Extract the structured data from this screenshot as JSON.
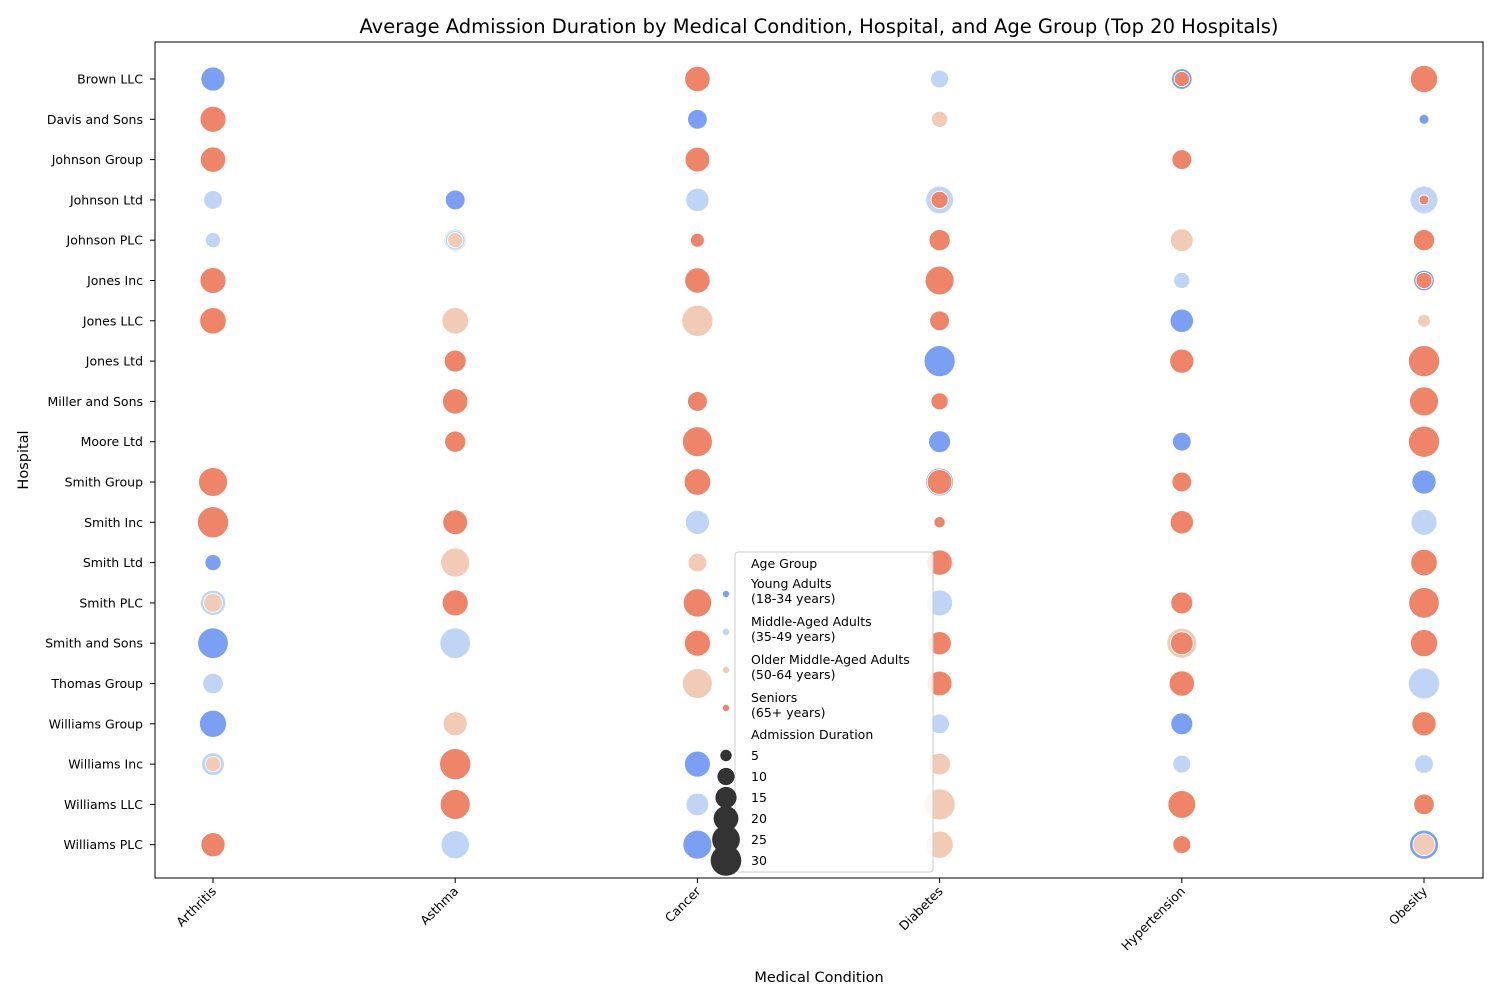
{
  "chart_data": {
    "type": "scatter",
    "title": "Average Admission Duration by Medical Condition, Hospital, and Age Group (Top 20 Hospitals)",
    "xlabel": "Medical Condition",
    "ylabel": "Hospital",
    "categories_x": [
      "Arthritis",
      "Asthma",
      "Cancer",
      "Diabetes",
      "Hypertension",
      "Obesity"
    ],
    "categories_y": [
      "Brown LLC",
      "Davis and Sons",
      "Johnson Group",
      "Johnson Ltd",
      "Johnson PLC",
      "Jones Inc",
      "Jones LLC",
      "Jones Ltd",
      "Miller and Sons",
      "Moore Ltd",
      "Smith Group",
      "Smith Inc",
      "Smith Ltd",
      "Smith PLC",
      "Smith and Sons",
      "Thomas Group",
      "Williams Group",
      "Williams Inc",
      "Williams LLC",
      "Williams PLC"
    ],
    "grid": false,
    "legend_placement": "lower-center",
    "legend": {
      "hue_title": "Age Group",
      "size_title": "Admission Duration",
      "hue_items": [
        {
          "key": "young",
          "lines": [
            "Young Adults",
            "(18-34 years)"
          ],
          "color": "#7b9ff2"
        },
        {
          "key": "middle",
          "lines": [
            "Middle-Aged Adults",
            "(35-49 years)"
          ],
          "color": "#c0d4f5"
        },
        {
          "key": "older",
          "lines": [
            "Older Middle-Aged Adults",
            "(50-64 years)"
          ],
          "color": "#f2cbb7"
        },
        {
          "key": "senior",
          "lines": [
            "Seniors",
            "(65+ years)"
          ],
          "color": "#ee8468"
        }
      ],
      "size_items": [
        5,
        10,
        15,
        20,
        25,
        30
      ]
    },
    "size_range": [
      4,
      32
    ],
    "points": [
      {
        "x": "Arthritis",
        "y": "Brown LLC",
        "group": "young",
        "value": 19
      },
      {
        "x": "Cancer",
        "y": "Brown LLC",
        "group": "senior",
        "value": 21
      },
      {
        "x": "Diabetes",
        "y": "Brown LLC",
        "group": "middle",
        "value": 11
      },
      {
        "x": "Hypertension",
        "y": "Brown LLC",
        "group": "young",
        "value": 14
      },
      {
        "x": "Hypertension",
        "y": "Brown LLC",
        "group": "senior",
        "value": 8
      },
      {
        "x": "Obesity",
        "y": "Brown LLC",
        "group": "senior",
        "value": 24
      },
      {
        "x": "Arthritis",
        "y": "Davis and Sons",
        "group": "senior",
        "value": 22
      },
      {
        "x": "Cancer",
        "y": "Davis and Sons",
        "group": "young",
        "value": 13
      },
      {
        "x": "Diabetes",
        "y": "Davis and Sons",
        "group": "older",
        "value": 9
      },
      {
        "x": "Obesity",
        "y": "Davis and Sons",
        "group": "young",
        "value": 4
      },
      {
        "x": "Arthritis",
        "y": "Johnson Group",
        "group": "senior",
        "value": 21
      },
      {
        "x": "Cancer",
        "y": "Johnson Group",
        "group": "senior",
        "value": 20
      },
      {
        "x": "Hypertension",
        "y": "Johnson Group",
        "group": "senior",
        "value": 13
      },
      {
        "x": "Arthritis",
        "y": "Johnson Ltd",
        "group": "middle",
        "value": 12
      },
      {
        "x": "Asthma",
        "y": "Johnson Ltd",
        "group": "young",
        "value": 13
      },
      {
        "x": "Cancer",
        "y": "Johnson Ltd",
        "group": "middle",
        "value": 18
      },
      {
        "x": "Diabetes",
        "y": "Johnson Ltd",
        "group": "middle",
        "value": 25
      },
      {
        "x": "Diabetes",
        "y": "Johnson Ltd",
        "group": "senior",
        "value": 10
      },
      {
        "x": "Obesity",
        "y": "Johnson Ltd",
        "group": "middle",
        "value": 25
      },
      {
        "x": "Obesity",
        "y": "Johnson Ltd",
        "group": "senior",
        "value": 4
      },
      {
        "x": "Arthritis",
        "y": "Johnson PLC",
        "group": "middle",
        "value": 8
      },
      {
        "x": "Asthma",
        "y": "Johnson PLC",
        "group": "young",
        "value": 16
      },
      {
        "x": "Asthma",
        "y": "Johnson PLC",
        "group": "middle",
        "value": 13
      },
      {
        "x": "Asthma",
        "y": "Johnson PLC",
        "group": "older",
        "value": 8
      },
      {
        "x": "Cancer",
        "y": "Johnson PLC",
        "group": "senior",
        "value": 7
      },
      {
        "x": "Diabetes",
        "y": "Johnson PLC",
        "group": "senior",
        "value": 15
      },
      {
        "x": "Hypertension",
        "y": "Johnson PLC",
        "group": "older",
        "value": 17
      },
      {
        "x": "Obesity",
        "y": "Johnson PLC",
        "group": "senior",
        "value": 15
      },
      {
        "x": "Arthritis",
        "y": "Jones Inc",
        "group": "senior",
        "value": 22
      },
      {
        "x": "Cancer",
        "y": "Jones Inc",
        "group": "senior",
        "value": 21
      },
      {
        "x": "Diabetes",
        "y": "Jones Inc",
        "group": "senior",
        "value": 27
      },
      {
        "x": "Hypertension",
        "y": "Jones Inc",
        "group": "middle",
        "value": 9
      },
      {
        "x": "Obesity",
        "y": "Jones Inc",
        "group": "young",
        "value": 14
      },
      {
        "x": "Obesity",
        "y": "Jones Inc",
        "group": "senior",
        "value": 9
      },
      {
        "x": "Arthritis",
        "y": "Jones LLC",
        "group": "senior",
        "value": 23
      },
      {
        "x": "Asthma",
        "y": "Jones LLC",
        "group": "older",
        "value": 23
      },
      {
        "x": "Cancer",
        "y": "Jones LLC",
        "group": "older",
        "value": 31
      },
      {
        "x": "Diabetes",
        "y": "Jones LLC",
        "group": "senior",
        "value": 13
      },
      {
        "x": "Hypertension",
        "y": "Jones LLC",
        "group": "young",
        "value": 18
      },
      {
        "x": "Obesity",
        "y": "Jones LLC",
        "group": "older",
        "value": 6
      },
      {
        "x": "Asthma",
        "y": "Jones Ltd",
        "group": "senior",
        "value": 16
      },
      {
        "x": "Diabetes",
        "y": "Jones Ltd",
        "group": "young",
        "value": 31
      },
      {
        "x": "Hypertension",
        "y": "Jones Ltd",
        "group": "senior",
        "value": 19
      },
      {
        "x": "Obesity",
        "y": "Jones Ltd",
        "group": "senior",
        "value": 31
      },
      {
        "x": "Asthma",
        "y": "Miller and Sons",
        "group": "senior",
        "value": 21
      },
      {
        "x": "Cancer",
        "y": "Miller and Sons",
        "group": "senior",
        "value": 13
      },
      {
        "x": "Diabetes",
        "y": "Miller and Sons",
        "group": "senior",
        "value": 10
      },
      {
        "x": "Obesity",
        "y": "Miller and Sons",
        "group": "senior",
        "value": 27
      },
      {
        "x": "Asthma",
        "y": "Moore Ltd",
        "group": "senior",
        "value": 15
      },
      {
        "x": "Cancer",
        "y": "Moore Ltd",
        "group": "senior",
        "value": 29
      },
      {
        "x": "Diabetes",
        "y": "Moore Ltd",
        "group": "young",
        "value": 16
      },
      {
        "x": "Hypertension",
        "y": "Moore Ltd",
        "group": "young",
        "value": 12
      },
      {
        "x": "Obesity",
        "y": "Moore Ltd",
        "group": "senior",
        "value": 31
      },
      {
        "x": "Arthritis",
        "y": "Smith Group",
        "group": "senior",
        "value": 27
      },
      {
        "x": "Cancer",
        "y": "Smith Group",
        "group": "senior",
        "value": 23
      },
      {
        "x": "Diabetes",
        "y": "Smith Group",
        "group": "young",
        "value": 25
      },
      {
        "x": "Diabetes",
        "y": "Smith Group",
        "group": "senior",
        "value": 20
      },
      {
        "x": "Hypertension",
        "y": "Smith Group",
        "group": "senior",
        "value": 13
      },
      {
        "x": "Obesity",
        "y": "Smith Group",
        "group": "young",
        "value": 19
      },
      {
        "x": "Arthritis",
        "y": "Smith Inc",
        "group": "senior",
        "value": 31
      },
      {
        "x": "Asthma",
        "y": "Smith Inc",
        "group": "senior",
        "value": 20
      },
      {
        "x": "Cancer",
        "y": "Smith Inc",
        "group": "middle",
        "value": 19
      },
      {
        "x": "Diabetes",
        "y": "Smith Inc",
        "group": "senior",
        "value": 5
      },
      {
        "x": "Hypertension",
        "y": "Smith Inc",
        "group": "senior",
        "value": 18
      },
      {
        "x": "Obesity",
        "y": "Smith Inc",
        "group": "middle",
        "value": 22
      },
      {
        "x": "Arthritis",
        "y": "Smith Ltd",
        "group": "young",
        "value": 9
      },
      {
        "x": "Asthma",
        "y": "Smith Ltd",
        "group": "older",
        "value": 27
      },
      {
        "x": "Cancer",
        "y": "Smith Ltd",
        "group": "older",
        "value": 12
      },
      {
        "x": "Diabetes",
        "y": "Smith Ltd",
        "group": "older",
        "value": 22
      },
      {
        "x": "Diabetes",
        "y": "Smith Ltd",
        "group": "senior",
        "value": 21
      },
      {
        "x": "Obesity",
        "y": "Smith Ltd",
        "group": "senior",
        "value": 23
      },
      {
        "x": "Arthritis",
        "y": "Smith PLC",
        "group": "middle",
        "value": 21
      },
      {
        "x": "Arthritis",
        "y": "Smith PLC",
        "group": "older",
        "value": 12
      },
      {
        "x": "Asthma",
        "y": "Smith PLC",
        "group": "senior",
        "value": 22
      },
      {
        "x": "Cancer",
        "y": "Smith PLC",
        "group": "senior",
        "value": 26
      },
      {
        "x": "Diabetes",
        "y": "Smith PLC",
        "group": "middle",
        "value": 22
      },
      {
        "x": "Hypertension",
        "y": "Smith PLC",
        "group": "senior",
        "value": 16
      },
      {
        "x": "Obesity",
        "y": "Smith PLC",
        "group": "senior",
        "value": 30
      },
      {
        "x": "Arthritis",
        "y": "Smith and Sons",
        "group": "young",
        "value": 30
      },
      {
        "x": "Asthma",
        "y": "Smith and Sons",
        "group": "middle",
        "value": 30
      },
      {
        "x": "Cancer",
        "y": "Smith and Sons",
        "group": "older",
        "value": 26
      },
      {
        "x": "Cancer",
        "y": "Smith and Sons",
        "group": "senior",
        "value": 22
      },
      {
        "x": "Diabetes",
        "y": "Smith and Sons",
        "group": "middle",
        "value": 20
      },
      {
        "x": "Diabetes",
        "y": "Smith and Sons",
        "group": "senior",
        "value": 18
      },
      {
        "x": "Hypertension",
        "y": "Smith and Sons",
        "group": "older",
        "value": 29
      },
      {
        "x": "Hypertension",
        "y": "Smith and Sons",
        "group": "senior",
        "value": 17
      },
      {
        "x": "Obesity",
        "y": "Smith and Sons",
        "group": "senior",
        "value": 24
      },
      {
        "x": "Arthritis",
        "y": "Thomas Group",
        "group": "middle",
        "value": 14
      },
      {
        "x": "Cancer",
        "y": "Thomas Group",
        "group": "older",
        "value": 29
      },
      {
        "x": "Diabetes",
        "y": "Thomas Group",
        "group": "senior",
        "value": 20
      },
      {
        "x": "Hypertension",
        "y": "Thomas Group",
        "group": "senior",
        "value": 21
      },
      {
        "x": "Obesity",
        "y": "Thomas Group",
        "group": "middle",
        "value": 31
      },
      {
        "x": "Arthritis",
        "y": "Williams Group",
        "group": "young",
        "value": 24
      },
      {
        "x": "Asthma",
        "y": "Williams Group",
        "group": "older",
        "value": 19
      },
      {
        "x": "Diabetes",
        "y": "Williams Group",
        "group": "middle",
        "value": 13
      },
      {
        "x": "Hypertension",
        "y": "Williams Group",
        "group": "young",
        "value": 16
      },
      {
        "x": "Obesity",
        "y": "Williams Group",
        "group": "senior",
        "value": 19
      },
      {
        "x": "Arthritis",
        "y": "Williams Inc",
        "group": "middle",
        "value": 17
      },
      {
        "x": "Arthritis",
        "y": "Williams Inc",
        "group": "older",
        "value": 8
      },
      {
        "x": "Asthma",
        "y": "Williams Inc",
        "group": "senior",
        "value": 31
      },
      {
        "x": "Cancer",
        "y": "Williams Inc",
        "group": "young",
        "value": 22
      },
      {
        "x": "Diabetes",
        "y": "Williams Inc",
        "group": "older",
        "value": 16
      },
      {
        "x": "Hypertension",
        "y": "Williams Inc",
        "group": "middle",
        "value": 11
      },
      {
        "x": "Obesity",
        "y": "Williams Inc",
        "group": "middle",
        "value": 12
      },
      {
        "x": "Asthma",
        "y": "Williams LLC",
        "group": "senior",
        "value": 29
      },
      {
        "x": "Cancer",
        "y": "Williams LLC",
        "group": "middle",
        "value": 17
      },
      {
        "x": "Diabetes",
        "y": "Williams LLC",
        "group": "older",
        "value": 31
      },
      {
        "x": "Hypertension",
        "y": "Williams LLC",
        "group": "senior",
        "value": 25
      },
      {
        "x": "Obesity",
        "y": "Williams LLC",
        "group": "senior",
        "value": 14
      },
      {
        "x": "Arthritis",
        "y": "Williams PLC",
        "group": "senior",
        "value": 19
      },
      {
        "x": "Asthma",
        "y": "Williams PLC",
        "group": "middle",
        "value": 26
      },
      {
        "x": "Cancer",
        "y": "Williams PLC",
        "group": "young",
        "value": 27
      },
      {
        "x": "Diabetes",
        "y": "Williams PLC",
        "group": "older",
        "value": 24
      },
      {
        "x": "Hypertension",
        "y": "Williams PLC",
        "group": "senior",
        "value": 11
      },
      {
        "x": "Obesity",
        "y": "Williams PLC",
        "group": "young",
        "value": 27
      },
      {
        "x": "Obesity",
        "y": "Williams PLC",
        "group": "older",
        "value": 16
      }
    ]
  }
}
